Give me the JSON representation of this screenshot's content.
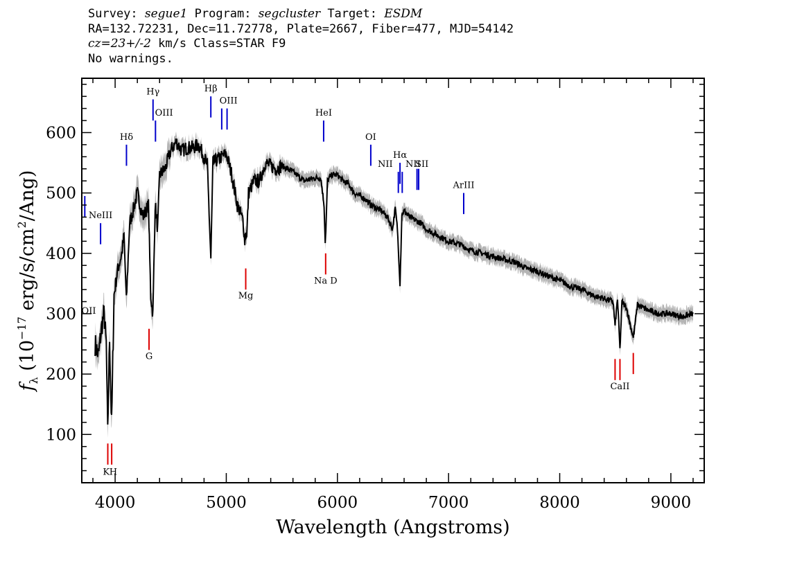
{
  "header": {
    "line1": {
      "survey_label": "Survey: ",
      "survey": "segue1",
      "program_label": " Program: ",
      "program": "segcluster",
      "target_label": " Target: ",
      "target": "ESDM"
    },
    "line2": "RA=132.72231, Dec=11.72778, Plate=2667, Fiber=477, MJD=54142",
    "line3": {
      "cz": "cz=23+/-2",
      "rest": " km/s Class=STAR F9"
    },
    "line4": "No warnings."
  },
  "chart_data": {
    "type": "line",
    "title": "",
    "xlabel": "Wavelength (Angstroms)",
    "ylabel": "f_λ (10^-17 erg/s/cm^2/Ang)",
    "xlim": [
      3700,
      9300
    ],
    "ylim": [
      20,
      690
    ],
    "x_ticks": [
      4000,
      5000,
      6000,
      7000,
      8000,
      9000
    ],
    "y_ticks": [
      100,
      200,
      300,
      400,
      500,
      600
    ],
    "grid": false,
    "colors": {
      "spectrum": "#000000",
      "error": "#b4b4b4",
      "emission": "#0000cc",
      "absorption": "#dd0000"
    },
    "series": [
      {
        "x": [
          3820,
          3850,
          3880,
          3900,
          3920,
          3933,
          3950,
          3968,
          3990,
          4020,
          4060,
          4080,
          4101,
          4130,
          4160,
          4200,
          4250,
          4300,
          4320,
          4340,
          4360,
          4383,
          4400,
          4450,
          4500,
          4550,
          4600,
          4650,
          4700,
          4750,
          4800,
          4830,
          4861,
          4880,
          4920,
          4960,
          5000,
          5050,
          5100,
          5150,
          5167,
          5175,
          5184,
          5200,
          5250,
          5300,
          5350,
          5400,
          5450,
          5500,
          5600,
          5700,
          5800,
          5850,
          5880,
          5890,
          5896,
          5910,
          5950,
          6000,
          6050,
          6100,
          6150,
          6200,
          6250,
          6300,
          6350,
          6400,
          6450,
          6496,
          6520,
          6540,
          6563,
          6580,
          6600,
          6650,
          6700,
          6750,
          6800,
          6900,
          7000,
          7100,
          7200,
          7300,
          7400,
          7500,
          7600,
          7700,
          7800,
          7900,
          8000,
          8100,
          8200,
          8300,
          8400,
          8480,
          8498,
          8520,
          8542,
          8560,
          8600,
          8662,
          8700,
          8800,
          8900,
          9000,
          9100,
          9200
        ],
        "values": [
          250,
          230,
          280,
          300,
          250,
          100,
          260,
          115,
          330,
          370,
          400,
          430,
          320,
          450,
          470,
          500,
          460,
          480,
          330,
          300,
          480,
          440,
          530,
          540,
          570,
          585,
          570,
          575,
          575,
          580,
          560,
          545,
          390,
          550,
          555,
          560,
          565,
          530,
          480,
          455,
          420,
          440,
          425,
          500,
          520,
          520,
          550,
          545,
          540,
          545,
          535,
          520,
          525,
          525,
          480,
          420,
          435,
          520,
          530,
          530,
          520,
          515,
          500,
          495,
          490,
          480,
          475,
          470,
          460,
          440,
          475,
          440,
          350,
          465,
          470,
          460,
          455,
          450,
          440,
          430,
          420,
          415,
          405,
          400,
          395,
          390,
          385,
          375,
          370,
          362,
          355,
          345,
          340,
          330,
          325,
          320,
          280,
          325,
          240,
          320,
          310,
          260,
          315,
          305,
          300,
          300,
          295,
          300
        ]
      }
    ],
    "emission_lines": [
      {
        "label": "OII",
        "x": 3727,
        "y_top": 495,
        "y_bot": 460
      },
      {
        "label": "NeIII",
        "x": 3869,
        "y_top": 450,
        "y_bot": 415
      },
      {
        "label": "Hδ",
        "x": 4102,
        "y_top": 580,
        "y_bot": 545
      },
      {
        "label": "Hγ",
        "x": 4341,
        "y_top": 655,
        "y_bot": 620
      },
      {
        "label": "OIII",
        "x": 4363,
        "y_top": 620,
        "y_bot": 585
      },
      {
        "label": "Hβ",
        "x": 4861,
        "y_top": 660,
        "y_bot": 625
      },
      {
        "label": "OIII",
        "x": 4959,
        "y_top": 640,
        "y_bot": 605
      },
      {
        "label": "OIII",
        "x": 5007,
        "y_top": 640,
        "y_bot": 605
      },
      {
        "label": "HeI",
        "x": 5876,
        "y_top": 620,
        "y_bot": 585
      },
      {
        "label": "OI",
        "x": 6300,
        "y_top": 580,
        "y_bot": 545
      },
      {
        "label": "NII",
        "x": 6548,
        "y_top": 535,
        "y_bot": 500
      },
      {
        "label": "Hα",
        "x": 6563,
        "y_top": 550,
        "y_bot": 515
      },
      {
        "label": "NII",
        "x": 6583,
        "y_top": 535,
        "y_bot": 500
      },
      {
        "label": "SII",
        "x": 6716,
        "y_top": 540,
        "y_bot": 505
      },
      {
        "label": "SII",
        "x": 6731,
        "y_top": 540,
        "y_bot": 505
      },
      {
        "label": "ArIII",
        "x": 7136,
        "y_top": 500,
        "y_bot": 465
      }
    ],
    "absorption_lines": [
      {
        "label": "K",
        "x": 3934,
        "y_top": 85,
        "y_bot": 50
      },
      {
        "label": "H",
        "x": 3969,
        "y_top": 85,
        "y_bot": 50
      },
      {
        "label": "G",
        "x": 4305,
        "y_top": 275,
        "y_bot": 240
      },
      {
        "label": "Mg",
        "x": 5175,
        "y_top": 375,
        "y_bot": 340
      },
      {
        "label": "Na D",
        "x": 5894,
        "y_top": 400,
        "y_bot": 365
      },
      {
        "label": "CaII",
        "x": 8498,
        "y_top": 225,
        "y_bot": 190
      },
      {
        "label": "CaII",
        "x": 8542,
        "y_top": 225,
        "y_bot": 190
      },
      {
        "label": "CaII",
        "x": 8662,
        "y_top": 235,
        "y_bot": 200
      }
    ],
    "line_labels": [
      {
        "text": "OII",
        "x": 3727,
        "y": 300,
        "color": "emission"
      },
      {
        "text": "NeIII",
        "x": 3869,
        "y": 458,
        "color": "emission"
      },
      {
        "text": "Hδ",
        "x": 4102,
        "y": 588,
        "color": "emission"
      },
      {
        "text": "Hγ",
        "x": 4341,
        "y": 663,
        "color": "emission"
      },
      {
        "text": "OIII",
        "x": 4440,
        "y": 628,
        "color": "emission"
      },
      {
        "text": "Hβ",
        "x": 4861,
        "y": 668,
        "color": "emission"
      },
      {
        "text": "OIII",
        "x": 5020,
        "y": 648,
        "color": "emission"
      },
      {
        "text": "HeI",
        "x": 5876,
        "y": 628,
        "color": "emission"
      },
      {
        "text": "OI",
        "x": 6300,
        "y": 588,
        "color": "emission"
      },
      {
        "text": "NII",
        "x": 6430,
        "y": 543,
        "color": "emission"
      },
      {
        "text": "Hα",
        "x": 6563,
        "y": 558,
        "color": "emission"
      },
      {
        "text": "NII",
        "x": 6680,
        "y": 543,
        "color": "emission"
      },
      {
        "text": "SII",
        "x": 6760,
        "y": 543,
        "color": "emission"
      },
      {
        "text": "ArIII",
        "x": 7136,
        "y": 508,
        "color": "emission"
      },
      {
        "text": "K",
        "x": 3920,
        "y": 33,
        "color": "absorption"
      },
      {
        "text": "H",
        "x": 3983,
        "y": 33,
        "color": "absorption"
      },
      {
        "text": "G",
        "x": 4305,
        "y": 225,
        "color": "absorption"
      },
      {
        "text": "Mg",
        "x": 5175,
        "y": 325,
        "color": "absorption"
      },
      {
        "text": "Na  D",
        "x": 5894,
        "y": 350,
        "color": "absorption"
      },
      {
        "text": "CaII",
        "x": 8542,
        "y": 175,
        "color": "absorption"
      }
    ]
  }
}
